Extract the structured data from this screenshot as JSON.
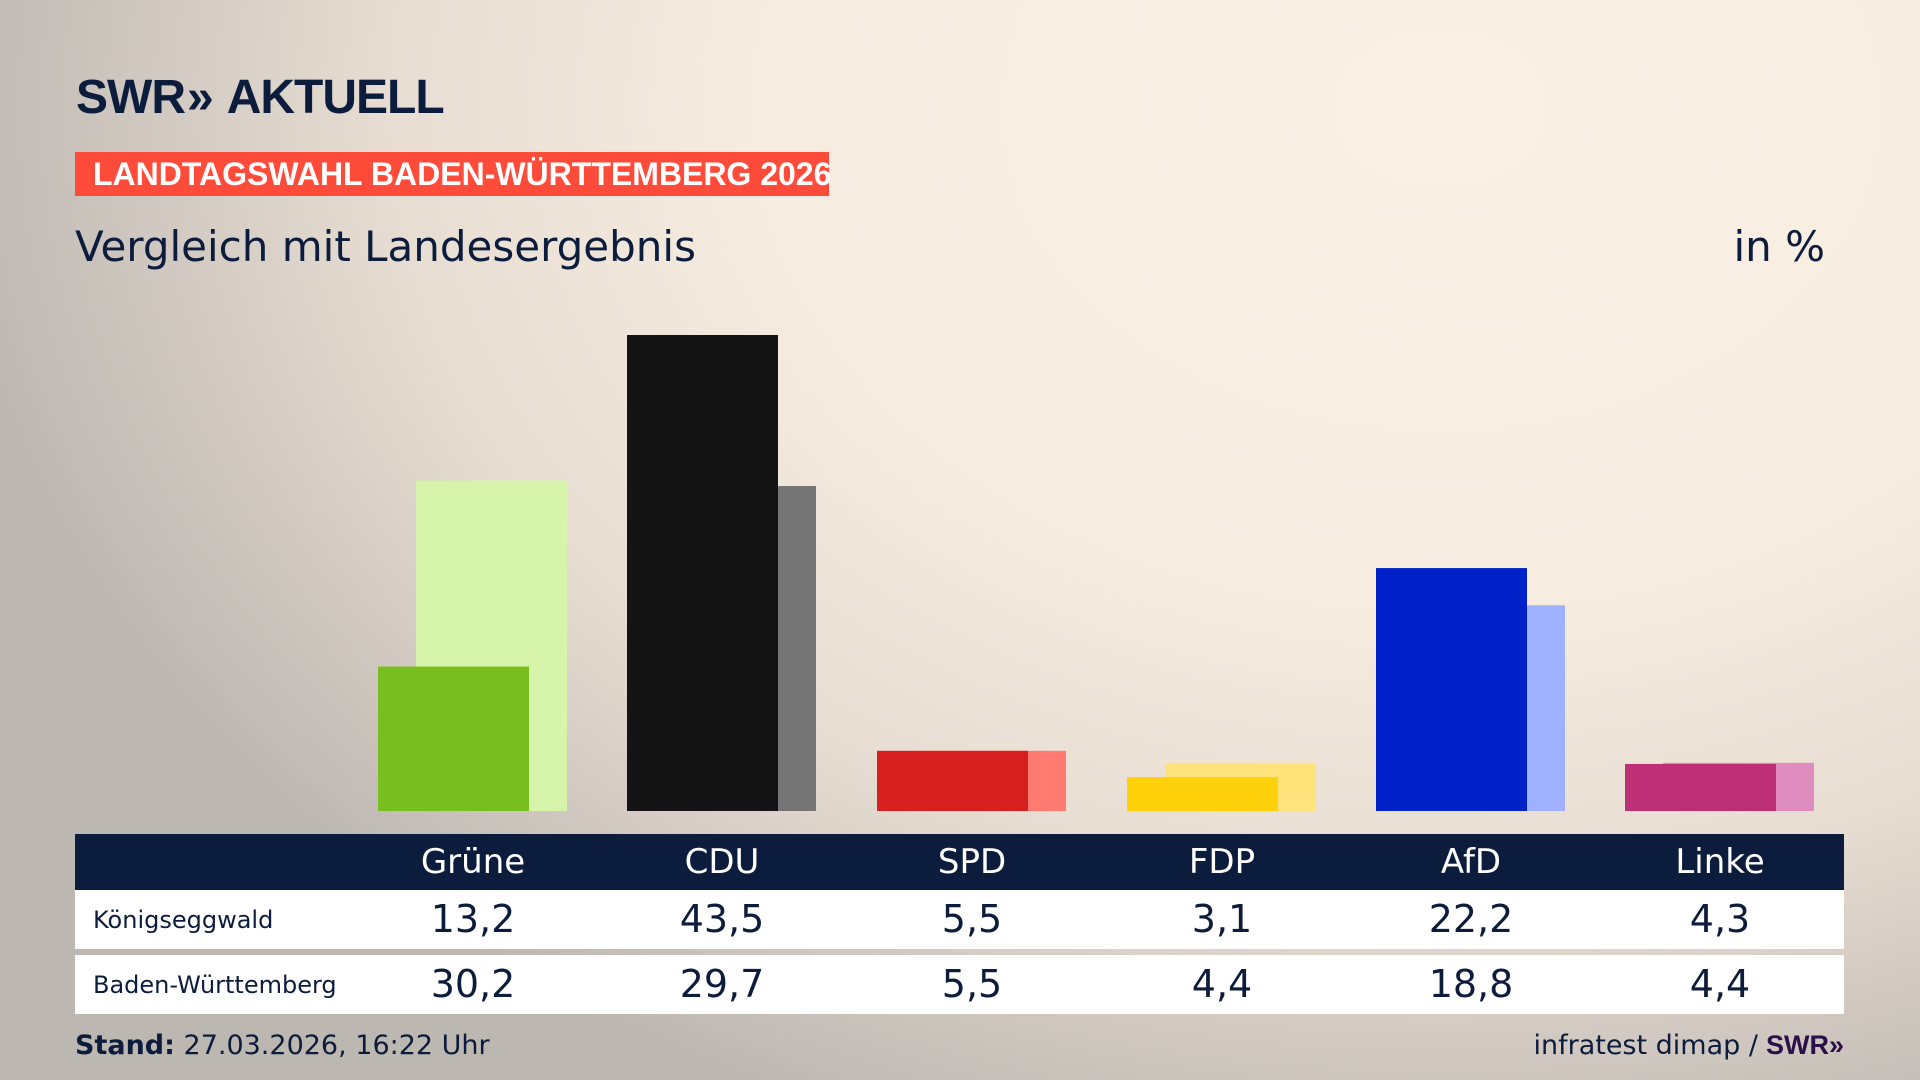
{
  "header": {
    "logo_text": "SWR» AKTUELL",
    "logo_swr": "SWR",
    "logo_arrows": "»",
    "logo_aktuell": "AKTUELL",
    "banner": "LANDTAGSWAHL BADEN-WÜRTTEMBERG 2026",
    "subtitle": "Vergleich mit Landesergebnis",
    "unit": "in %"
  },
  "colors": {
    "navy": "#0c1c3c",
    "banner": "#ff4b3a"
  },
  "chart_data": {
    "type": "bar",
    "title": "Vergleich mit Landesergebnis",
    "ylabel": "in %",
    "ylim": [
      0,
      43.5
    ],
    "grid": false,
    "categories": [
      "Grüne",
      "CDU",
      "SPD",
      "FDP",
      "AfD",
      "Linke"
    ],
    "series": [
      {
        "name": "Königseggwald",
        "values": [
          13.2,
          43.5,
          5.5,
          3.1,
          22.2,
          4.3
        ],
        "colors": [
          "#78be1e",
          "#141414",
          "#d81f1f",
          "#ffd10a",
          "#0020c8",
          "#be3075"
        ]
      },
      {
        "name": "Baden-Württemberg",
        "values": [
          30.2,
          29.7,
          5.5,
          4.4,
          18.8,
          4.4
        ],
        "colors": [
          "#d6f5ab",
          "#757575",
          "#ff7a70",
          "#ffe37a",
          "#9fb0ff",
          "#df8cbf"
        ]
      }
    ]
  },
  "table": {
    "headers": [
      "Grüne",
      "CDU",
      "SPD",
      "FDP",
      "AfD",
      "Linke"
    ],
    "rows": [
      {
        "label": "Königseggwald",
        "values": [
          "13,2",
          "43,5",
          "5,5",
          "3,1",
          "22,2",
          "4,3"
        ]
      },
      {
        "label": "Baden-Württemberg",
        "values": [
          "30,2",
          "29,7",
          "5,5",
          "4,4",
          "18,8",
          "4,4"
        ]
      }
    ]
  },
  "footer": {
    "stand_label": "Stand:",
    "stand_value": "27.03.2026, 16:22 Uhr",
    "source": "infratest dimap /",
    "source_logo": "SWR»"
  }
}
